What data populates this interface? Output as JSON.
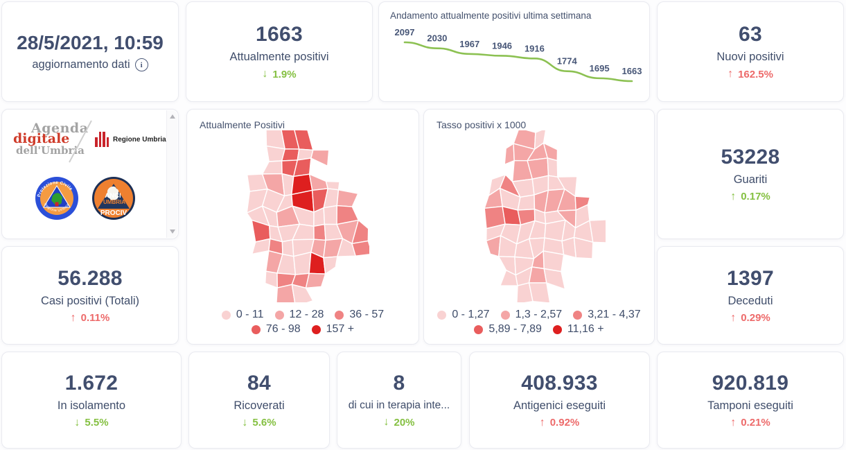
{
  "theme": {
    "good_color": "#85c042",
    "bad_color": "#ed6a6a",
    "number_color": "#414e6e",
    "line_color": "#8cc152"
  },
  "updated": {
    "date": "28/5/2021, 10:59",
    "label": "aggiornamento dati"
  },
  "stats": {
    "attualmente_positivi": {
      "value": "1663",
      "label": "Attualmente positivi",
      "arrow": "↓",
      "delta": "1.9%",
      "tone": "green"
    },
    "nuovi_positivi": {
      "value": "63",
      "label": "Nuovi positivi",
      "arrow": "↑",
      "delta": "162.5%",
      "tone": "red"
    },
    "guariti": {
      "value": "53228",
      "label": "Guariti",
      "arrow": "↑",
      "delta": "0.17%",
      "tone": "green"
    },
    "casi_totali": {
      "value": "56.288",
      "label": "Casi positivi (Totali)",
      "arrow": "↑",
      "delta": "0.11%",
      "tone": "red"
    },
    "deceduti": {
      "value": "1397",
      "label": "Deceduti",
      "arrow": "↑",
      "delta": "0.29%",
      "tone": "red"
    },
    "in_isolamento": {
      "value": "1.672",
      "label": "In isolamento",
      "arrow": "↓",
      "delta": "5.5%",
      "tone": "green"
    },
    "ricoverati": {
      "value": "84",
      "label": "Ricoverati",
      "arrow": "↓",
      "delta": "5.6%",
      "tone": "green"
    },
    "terapia_intensiva": {
      "value": "8",
      "label": "di cui in terapia inte...",
      "arrow": "↓",
      "delta": "20%",
      "tone": "green"
    },
    "antigenici": {
      "value": "408.933",
      "label": "Antigenici eseguiti",
      "arrow": "↑",
      "delta": "0.92%",
      "tone": "red"
    },
    "tamponi": {
      "value": "920.819",
      "label": "Tamponi eseguiti",
      "arrow": "↑",
      "delta": "0.21%",
      "tone": "red"
    }
  },
  "chart_data": {
    "type": "line",
    "title": "Andamento attualmente positivi ultima settimana",
    "values": [
      2097,
      2030,
      1967,
      1946,
      1916,
      1774,
      1695,
      1663
    ],
    "data_labels": true,
    "line_color": "#8cc152",
    "grid": false,
    "axes_visible": false
  },
  "maps": {
    "attualmente": {
      "title": "Attualmente Positivi",
      "legend": [
        {
          "label": "0 - 11",
          "color": "#f9d2d2"
        },
        {
          "label": "12 - 28",
          "color": "#f4a6a6"
        },
        {
          "label": "36 - 57",
          "color": "#ef8383"
        },
        {
          "label": "76 - 98",
          "color": "#e95d5d"
        },
        {
          "label": "157 +",
          "color": "#de1f1f"
        }
      ]
    },
    "tasso": {
      "title": "Tasso positivi x 1000",
      "legend": [
        {
          "label": "0 - 1,27",
          "color": "#f9d2d2"
        },
        {
          "label": "1,3 - 2,57",
          "color": "#f4a6a6"
        },
        {
          "label": "3,21 - 4,37",
          "color": "#ef8383"
        },
        {
          "label": "5,89 - 7,89",
          "color": "#e95d5d"
        },
        {
          "label": "11,16 +",
          "color": "#de1f1f"
        }
      ]
    }
  },
  "logos": {
    "agenda": {
      "line1": "Agenda",
      "line2": "digitale",
      "line3": "dell'Umbria"
    },
    "regione": {
      "label": "Regione Umbria"
    },
    "protezione_civile": {
      "top": "Protezione Civile",
      "bottom": "Regione Umbria"
    },
    "anci": {
      "line1": "ANCI",
      "line2": "UMBRIA",
      "line3": "PROCIV"
    }
  }
}
